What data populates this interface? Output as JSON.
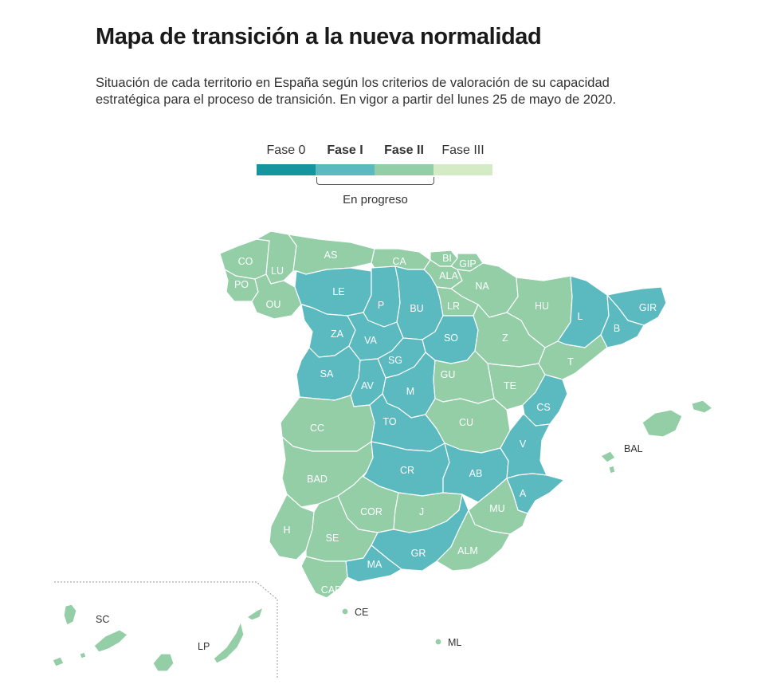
{
  "title": "Mapa de transición a la nueva normalidad",
  "subtitle": "Situación de cada territorio en España según los criterios de valoración de su capacidad estratégica para el proceso de transición. En vigor a partir del lunes 25 de mayo de 2020.",
  "legend": {
    "phases": [
      {
        "label": "Fase 0",
        "color": "#15969f",
        "bold": false
      },
      {
        "label": "Fase I",
        "color": "#5bb9c0",
        "bold": true
      },
      {
        "label": "Fase II",
        "color": "#93cea7",
        "bold": true
      },
      {
        "label": "Fase III",
        "color": "#d3ecc5",
        "bold": false
      }
    ],
    "progress_label": "En progreso"
  },
  "colors": {
    "fase_i": "#5bb9c0",
    "fase_ii": "#93cea7",
    "border": "#ffffff"
  },
  "provinces": [
    {
      "code": "CO",
      "phase": "Fase II"
    },
    {
      "code": "LU",
      "phase": "Fase II"
    },
    {
      "code": "PO",
      "phase": "Fase II"
    },
    {
      "code": "OU",
      "phase": "Fase II"
    },
    {
      "code": "AS",
      "phase": "Fase II"
    },
    {
      "code": "CA",
      "phase": "Fase II"
    },
    {
      "code": "BI",
      "phase": "Fase II"
    },
    {
      "code": "GIP",
      "phase": "Fase II"
    },
    {
      "code": "ALA",
      "phase": "Fase II"
    },
    {
      "code": "NA",
      "phase": "Fase II"
    },
    {
      "code": "LE",
      "phase": "Fase I"
    },
    {
      "code": "P",
      "phase": "Fase I"
    },
    {
      "code": "BU",
      "phase": "Fase I"
    },
    {
      "code": "LR",
      "phase": "Fase II"
    },
    {
      "code": "HU",
      "phase": "Fase II"
    },
    {
      "code": "L",
      "phase": "Fase I"
    },
    {
      "code": "GIR",
      "phase": "Fase I"
    },
    {
      "code": "B",
      "phase": "Fase I"
    },
    {
      "code": "ZA",
      "phase": "Fase I"
    },
    {
      "code": "VA",
      "phase": "Fase I"
    },
    {
      "code": "SO",
      "phase": "Fase I"
    },
    {
      "code": "Z",
      "phase": "Fase II"
    },
    {
      "code": "T",
      "phase": "Fase II"
    },
    {
      "code": "SA",
      "phase": "Fase I"
    },
    {
      "code": "SG",
      "phase": "Fase I"
    },
    {
      "code": "AV",
      "phase": "Fase I"
    },
    {
      "code": "M",
      "phase": "Fase I"
    },
    {
      "code": "GU",
      "phase": "Fase II"
    },
    {
      "code": "TE",
      "phase": "Fase II"
    },
    {
      "code": "CS",
      "phase": "Fase I"
    },
    {
      "code": "CC",
      "phase": "Fase II"
    },
    {
      "code": "TO",
      "phase": "Fase I"
    },
    {
      "code": "CU",
      "phase": "Fase II"
    },
    {
      "code": "V",
      "phase": "Fase I"
    },
    {
      "code": "BAD",
      "phase": "Fase II"
    },
    {
      "code": "CR",
      "phase": "Fase I"
    },
    {
      "code": "AB",
      "phase": "Fase I"
    },
    {
      "code": "A",
      "phase": "Fase I"
    },
    {
      "code": "COR",
      "phase": "Fase II"
    },
    {
      "code": "J",
      "phase": "Fase II"
    },
    {
      "code": "MU",
      "phase": "Fase II"
    },
    {
      "code": "H",
      "phase": "Fase II"
    },
    {
      "code": "SE",
      "phase": "Fase II"
    },
    {
      "code": "GR",
      "phase": "Fase I"
    },
    {
      "code": "MA",
      "phase": "Fase I"
    },
    {
      "code": "ALM",
      "phase": "Fase II"
    },
    {
      "code": "CAD",
      "phase": "Fase II"
    },
    {
      "code": "CE",
      "phase": "Fase II"
    },
    {
      "code": "ML",
      "phase": "Fase II"
    },
    {
      "code": "BAL",
      "phase": "Fase II"
    },
    {
      "code": "SC",
      "phase": "Fase II"
    },
    {
      "code": "LP",
      "phase": "Fase II"
    }
  ]
}
